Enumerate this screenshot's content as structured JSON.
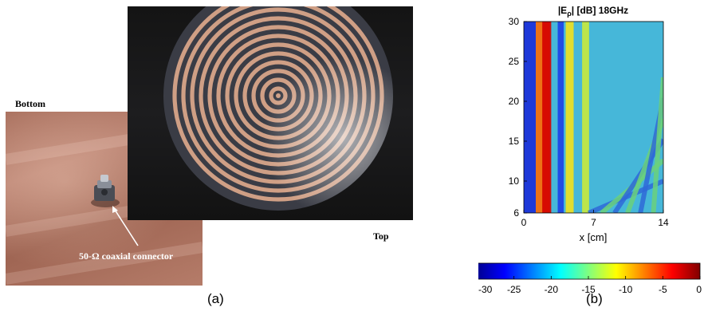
{
  "panel_a": {
    "bottom_label": "Bottom",
    "top_label": "Top",
    "connector_label": "50-Ω coaxial connector",
    "caption": "(a)"
  },
  "panel_b": {
    "caption": "(b)"
  },
  "chart_data": {
    "type": "heatmap",
    "title": "|E_ρ| [dB] 18GHz",
    "title_main": "|E",
    "title_sub": "ρ",
    "title_rest": "| [dB] 18GHz",
    "xlabel": "x [cm]",
    "ylabel": "",
    "xlim": [
      0,
      14
    ],
    "ylim": [
      6,
      30
    ],
    "x_ticks": [
      "0",
      "7",
      "14"
    ],
    "y_ticks": [
      "30",
      "25",
      "20",
      "15",
      "10",
      "6"
    ],
    "colorbar": {
      "range": [
        -30,
        0
      ],
      "ticks": [
        "-30",
        "-25",
        "-20",
        "-15",
        "-10",
        "-5",
        "0"
      ],
      "colormap": "jet"
    }
  }
}
